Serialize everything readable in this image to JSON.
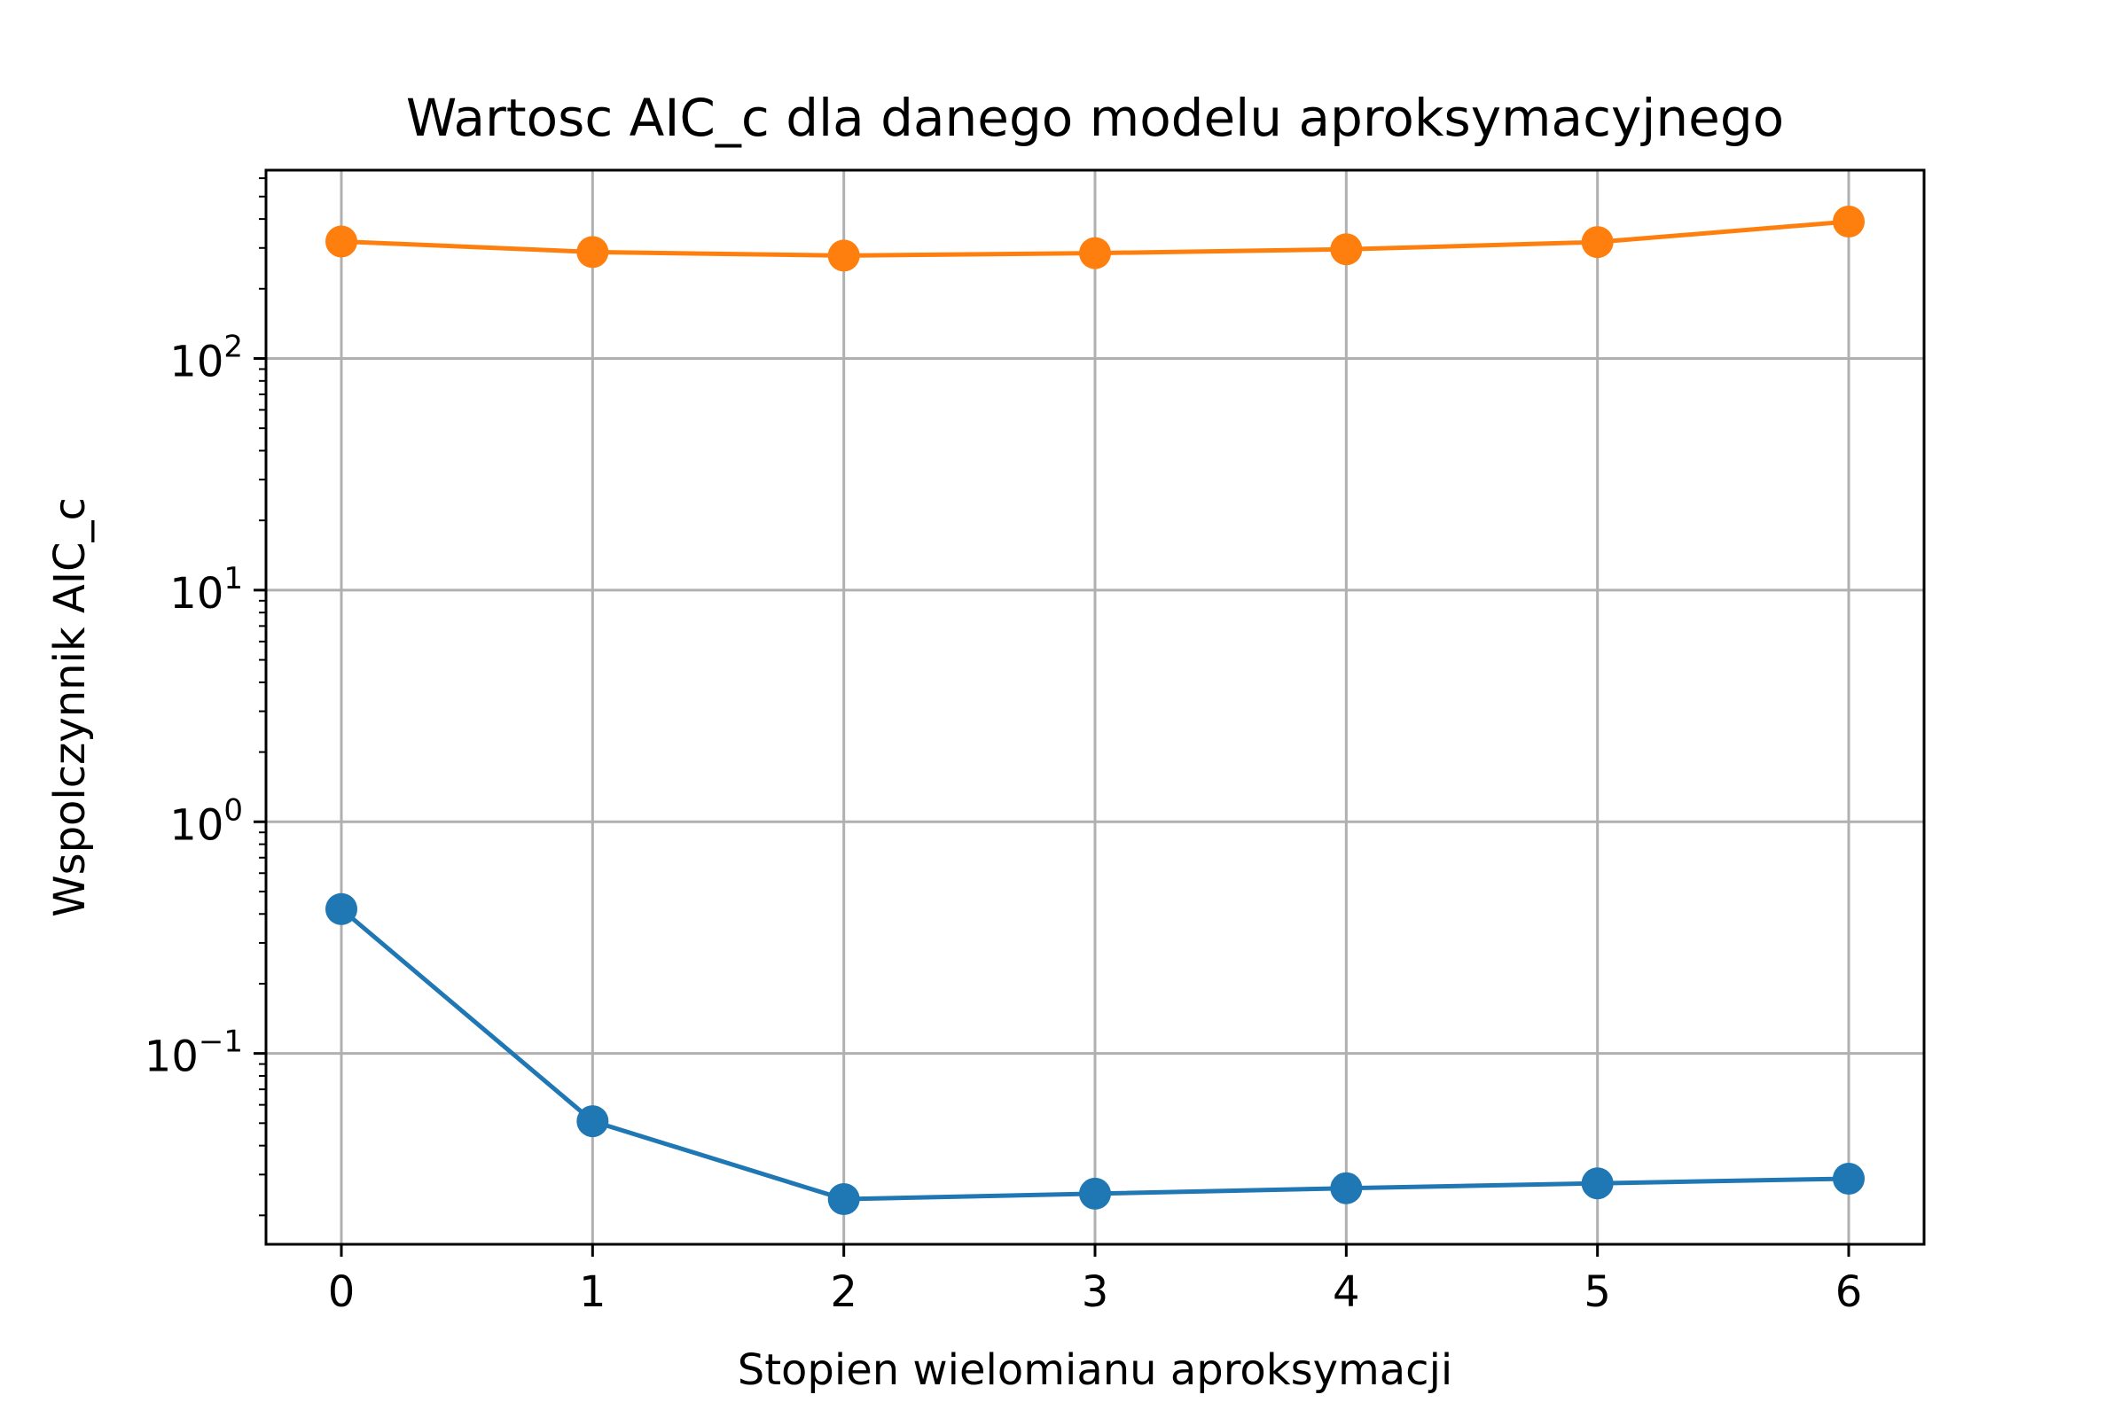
{
  "chart_data": {
    "type": "line",
    "title": "Wartosc AIC_c dla danego modelu aproksymacyjnego",
    "xlabel": "Stopien wielomianu aproksymacji",
    "ylabel": "Wspolczynnik AIC_c",
    "yscale": "log",
    "grid": true,
    "x": [
      0,
      1,
      2,
      3,
      4,
      5,
      6
    ],
    "xlim": [
      -0.3,
      6.3
    ],
    "ylim": [
      0.015,
      650
    ],
    "x_ticks": [
      "0",
      "1",
      "2",
      "3",
      "4",
      "5",
      "6"
    ],
    "y_ticks": [
      {
        "value": 0.1,
        "base": "10",
        "exp": "−1"
      },
      {
        "value": 1,
        "base": "10",
        "exp": "0"
      },
      {
        "value": 10,
        "base": "10",
        "exp": "1"
      },
      {
        "value": 100,
        "base": "10",
        "exp": "2"
      }
    ],
    "series": [
      {
        "color": "#1f77b4",
        "values": [
          0.42,
          0.051,
          0.0235,
          0.0248,
          0.0262,
          0.0275,
          0.0288
        ]
      },
      {
        "color": "#ff7f0e",
        "values": [
          320,
          288,
          278,
          285,
          296,
          318,
          390
        ]
      }
    ]
  }
}
